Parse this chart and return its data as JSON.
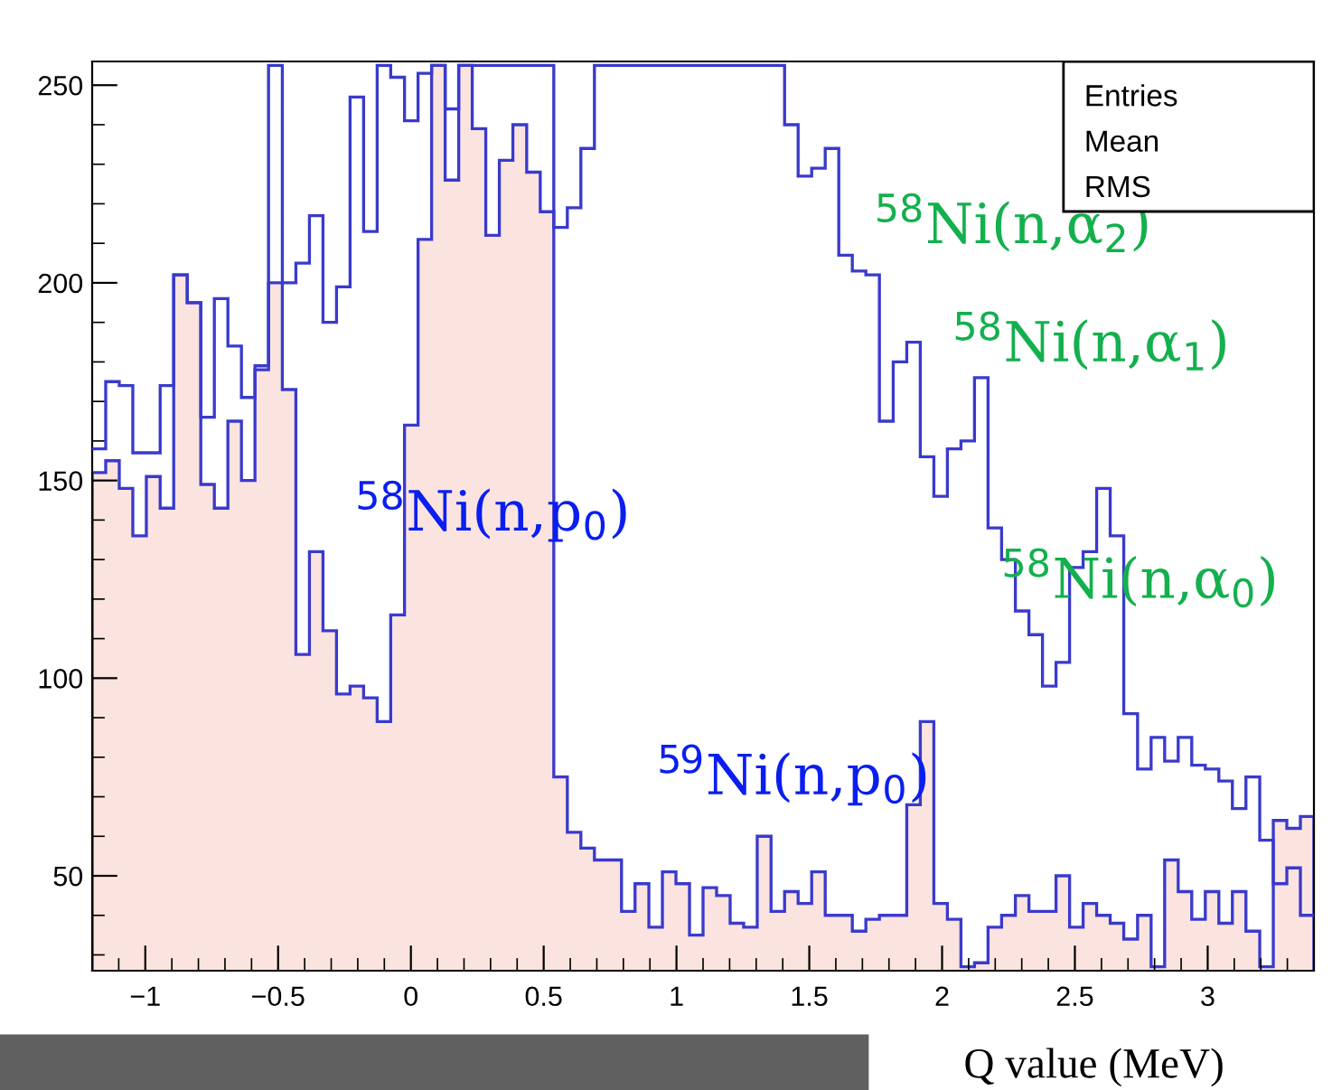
{
  "chart_data": {
    "type": "histogram",
    "xlabel": "Q value (MeV)",
    "bins": [
      -1.2,
      -1.149,
      -1.098,
      -1.047,
      -0.996,
      -0.944,
      -0.893,
      -0.842,
      -0.791,
      -0.74,
      -0.689,
      -0.638,
      -0.587,
      -0.536,
      -0.484,
      -0.433,
      -0.382,
      -0.331,
      -0.28,
      -0.229,
      -0.178,
      -0.127,
      -0.076,
      -0.024,
      0.027,
      0.078,
      0.129,
      0.18,
      0.231,
      0.282,
      0.333,
      0.384,
      0.436,
      0.487,
      0.538,
      0.589,
      0.64,
      0.691,
      0.742,
      0.793,
      0.844,
      0.896,
      0.947,
      0.998,
      1.049,
      1.1,
      1.151,
      1.202,
      1.253,
      1.304,
      1.356,
      1.407,
      1.458,
      1.509,
      1.56,
      1.611,
      1.662,
      1.713,
      1.764,
      1.816,
      1.867,
      1.918,
      1.969,
      2.02,
      2.071,
      2.122,
      2.173,
      2.224,
      2.276,
      2.327,
      2.378,
      2.429,
      2.48,
      2.531,
      2.582,
      2.633,
      2.684,
      2.736,
      2.787,
      2.838,
      2.889,
      2.94,
      2.991,
      3.042,
      3.093,
      3.144,
      3.196,
      3.247,
      3.298,
      3.349,
      3.4
    ],
    "series": [
      {
        "color": "#fbe4df",
        "values": [
          152,
          155,
          148,
          136,
          151,
          143,
          202,
          195,
          149,
          143,
          165,
          150,
          178,
          200,
          173,
          106,
          132,
          112,
          96,
          98,
          95,
          89,
          116,
          164,
          211,
          255,
          226,
          255,
          239,
          212,
          231,
          240,
          228,
          218,
          75,
          61,
          57,
          54,
          54,
          41,
          48,
          37,
          51,
          48,
          35,
          47,
          45,
          38,
          37,
          60,
          41,
          46,
          43,
          51,
          40,
          40,
          36,
          39,
          40,
          40,
          68,
          89,
          43,
          39,
          27,
          28,
          37,
          40,
          45,
          41,
          41,
          50,
          37,
          43,
          40,
          38,
          34,
          40,
          27,
          54,
          46,
          39,
          46,
          38,
          46,
          36,
          27,
          64,
          62,
          65
        ]
      },
      {
        "color": "#3a3acc",
        "values": [
          158,
          175,
          174,
          157,
          157,
          174,
          202,
          195,
          166,
          196,
          184,
          171,
          179,
          255,
          200,
          205,
          217,
          190,
          199,
          247,
          213,
          255,
          252,
          241,
          253,
          255,
          244,
          255,
          255,
          255,
          255,
          255,
          255,
          255,
          214,
          219,
          234,
          255,
          255,
          255,
          255,
          255,
          255,
          255,
          255,
          255,
          255,
          255,
          255,
          255,
          255,
          240,
          227,
          229,
          234,
          207,
          203,
          202,
          165,
          180,
          185,
          156,
          146,
          158,
          160,
          176,
          138,
          130,
          117,
          111,
          98,
          104,
          128,
          132,
          148,
          136,
          91,
          77,
          85,
          79,
          85,
          78,
          77,
          74,
          67,
          75,
          59,
          48,
          52,
          40
        ]
      }
    ],
    "xlim": [
      -1.2,
      3.4
    ],
    "ylim": [
      26,
      256
    ],
    "xticks": [
      {
        "value": -1,
        "label": "−1"
      },
      {
        "value": -0.5,
        "label": "−0.5"
      },
      0,
      0.5,
      1,
      1.5,
      2,
      2.5,
      3
    ],
    "yticks": [
      50,
      100,
      150,
      200,
      250
    ],
    "annotations": [
      "$^{58}$Ni(n,p$_{0}$)",
      "$^{59}$Ni(n,p$_{0}$)",
      "$^{58}$Ni(n,α$_{2}$)",
      "$^{58}$Ni(n,α$_{1}$)",
      "$^{58}$Ni(n,α$_{0}$)",
      "Entries",
      "Mean",
      "RMS"
    ]
  }
}
